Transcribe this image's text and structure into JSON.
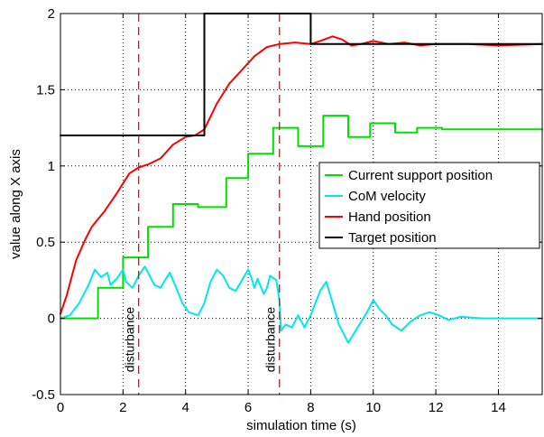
{
  "chart_data": {
    "type": "line",
    "title": "",
    "xlabel": "simulation time (s)",
    "ylabel": "value along X axis",
    "xlim": [
      0,
      15.4
    ],
    "ylim": [
      -0.5,
      2
    ],
    "grid": true,
    "x_ticks": [
      0,
      2,
      4,
      6,
      8,
      10,
      12,
      14
    ],
    "x_tick_labels": [
      "0",
      "2",
      "4",
      "6",
      "8",
      "10",
      "12",
      "14"
    ],
    "y_ticks": [
      -0.5,
      0,
      0.5,
      1,
      1.5,
      2
    ],
    "y_tick_labels": [
      "-0.5",
      "0",
      "0.5",
      "1",
      "1.5",
      "2"
    ],
    "legend_position": "right",
    "annotations": [
      {
        "x": 2.5,
        "text": "disturbance",
        "style": "dashed",
        "color": "#ff0000"
      },
      {
        "x": 7.0,
        "text": "disturbance",
        "style": "dashed",
        "color": "#ff0000"
      }
    ],
    "series": [
      {
        "name": "Current support position",
        "color": "#00e000",
        "step": true,
        "points": [
          [
            0,
            0
          ],
          [
            1.2,
            0
          ],
          [
            1.2,
            0.2
          ],
          [
            2,
            0.2
          ],
          [
            2,
            0.4
          ],
          [
            2.8,
            0.4
          ],
          [
            2.8,
            0.6
          ],
          [
            3.6,
            0.6
          ],
          [
            3.6,
            0.75
          ],
          [
            4.4,
            0.75
          ],
          [
            4.4,
            0.73
          ],
          [
            5.3,
            0.73
          ],
          [
            5.3,
            0.92
          ],
          [
            6,
            0.92
          ],
          [
            6,
            1.08
          ],
          [
            6.8,
            1.08
          ],
          [
            6.8,
            1.25
          ],
          [
            7.6,
            1.25
          ],
          [
            7.6,
            1.13
          ],
          [
            8.4,
            1.13
          ],
          [
            8.4,
            1.33
          ],
          [
            9.2,
            1.33
          ],
          [
            9.2,
            1.19
          ],
          [
            9.9,
            1.19
          ],
          [
            9.9,
            1.28
          ],
          [
            10.7,
            1.28
          ],
          [
            10.7,
            1.22
          ],
          [
            11.4,
            1.22
          ],
          [
            11.4,
            1.25
          ],
          [
            12.2,
            1.25
          ],
          [
            12.2,
            1.24
          ],
          [
            15.4,
            1.24
          ]
        ]
      },
      {
        "name": "CoM velocity",
        "color": "#00e8e8",
        "step": false,
        "points": [
          [
            0,
            0
          ],
          [
            0.3,
            0.02
          ],
          [
            0.6,
            0.1
          ],
          [
            0.9,
            0.22
          ],
          [
            1.1,
            0.32
          ],
          [
            1.3,
            0.27
          ],
          [
            1.5,
            0.3
          ],
          [
            1.6,
            0.22
          ],
          [
            1.8,
            0.26
          ],
          [
            2,
            0.32
          ],
          [
            2.1,
            0.24
          ],
          [
            2.3,
            0.2
          ],
          [
            2.5,
            0.28
          ],
          [
            2.7,
            0.34
          ],
          [
            2.8,
            0.3
          ],
          [
            3,
            0.22
          ],
          [
            3.2,
            0.2
          ],
          [
            3.4,
            0.27
          ],
          [
            3.5,
            0.3
          ],
          [
            3.6,
            0.25
          ],
          [
            3.7,
            0.2
          ],
          [
            3.9,
            0.1
          ],
          [
            4.1,
            0.04
          ],
          [
            4.4,
            0.02
          ],
          [
            4.6,
            0.1
          ],
          [
            4.8,
            0.24
          ],
          [
            5,
            0.32
          ],
          [
            5.2,
            0.28
          ],
          [
            5.4,
            0.2
          ],
          [
            5.6,
            0.18
          ],
          [
            5.8,
            0.25
          ],
          [
            6,
            0.32
          ],
          [
            6.1,
            0.27
          ],
          [
            6.2,
            0.2
          ],
          [
            6.3,
            0.26
          ],
          [
            6.5,
            0.16
          ],
          [
            6.6,
            0.2
          ],
          [
            6.7,
            0.28
          ],
          [
            6.9,
            0.25
          ],
          [
            7,
            0.12
          ],
          [
            7.05,
            -0.08
          ],
          [
            7.2,
            -0.04
          ],
          [
            7.4,
            -0.06
          ],
          [
            7.6,
            0.02
          ],
          [
            7.8,
            -0.06
          ],
          [
            8,
            0.02
          ],
          [
            8.3,
            0.18
          ],
          [
            8.5,
            0.24
          ],
          [
            8.7,
            0.1
          ],
          [
            8.9,
            -0.04
          ],
          [
            9.2,
            -0.16
          ],
          [
            9.5,
            -0.06
          ],
          [
            9.8,
            0.04
          ],
          [
            10,
            0.12
          ],
          [
            10.2,
            0.06
          ],
          [
            10.4,
            0.02
          ],
          [
            10.6,
            -0.04
          ],
          [
            10.9,
            -0.08
          ],
          [
            11.2,
            -0.02
          ],
          [
            11.5,
            0.02
          ],
          [
            11.8,
            0.04
          ],
          [
            12.1,
            0.02
          ],
          [
            12.4,
            -0.01
          ],
          [
            12.8,
            0.01
          ],
          [
            13.5,
            0
          ],
          [
            15.4,
            0
          ]
        ]
      },
      {
        "name": "Hand position",
        "color": "#ff0000",
        "step": false,
        "points": [
          [
            0,
            0.03
          ],
          [
            0.2,
            0.15
          ],
          [
            0.5,
            0.38
          ],
          [
            0.8,
            0.52
          ],
          [
            1,
            0.6
          ],
          [
            1.4,
            0.7
          ],
          [
            1.8,
            0.82
          ],
          [
            2.2,
            0.95
          ],
          [
            2.5,
            0.99
          ],
          [
            2.8,
            1.01
          ],
          [
            3.2,
            1.05
          ],
          [
            3.6,
            1.14
          ],
          [
            4,
            1.19
          ],
          [
            4.3,
            1.2
          ],
          [
            4.6,
            1.24
          ],
          [
            5,
            1.41
          ],
          [
            5.4,
            1.54
          ],
          [
            5.8,
            1.63
          ],
          [
            6.2,
            1.72
          ],
          [
            6.6,
            1.78
          ],
          [
            7,
            1.8
          ],
          [
            7.5,
            1.81
          ],
          [
            8,
            1.8
          ],
          [
            8.3,
            1.82
          ],
          [
            8.7,
            1.85
          ],
          [
            9,
            1.83
          ],
          [
            9.3,
            1.79
          ],
          [
            9.6,
            1.8
          ],
          [
            10,
            1.82
          ],
          [
            10.5,
            1.8
          ],
          [
            11,
            1.81
          ],
          [
            11.5,
            1.79
          ],
          [
            12,
            1.8
          ],
          [
            13,
            1.8
          ],
          [
            14,
            1.79
          ],
          [
            15.4,
            1.8
          ]
        ]
      },
      {
        "name": "Target position",
        "color": "#000000",
        "step": true,
        "points": [
          [
            0,
            1.2
          ],
          [
            4.6,
            1.2
          ],
          [
            4.6,
            2.0
          ],
          [
            8,
            2.0
          ],
          [
            8,
            1.8
          ],
          [
            15.4,
            1.8
          ]
        ]
      }
    ]
  }
}
